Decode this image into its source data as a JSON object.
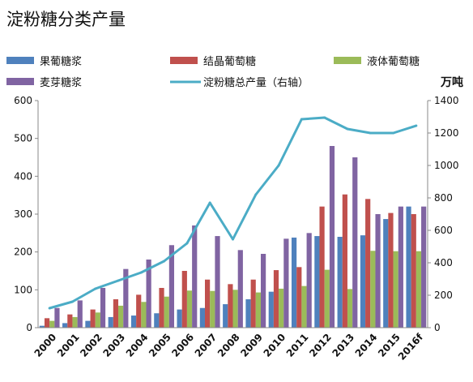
{
  "chart_data": {
    "type": "bar",
    "title": "淀粉糖分类产量",
    "y2_unit": "万吨",
    "categories": [
      "2000",
      "2001",
      "2002",
      "2003",
      "2004",
      "2005",
      "2006",
      "2007",
      "2008",
      "2009",
      "2010",
      "2011",
      "2012",
      "2013",
      "2014",
      "2015",
      "2016f"
    ],
    "series": [
      {
        "name": "果葡糖浆",
        "type": "bar",
        "axis": "left",
        "color": "#4f81bd",
        "values": [
          5,
          12,
          18,
          28,
          32,
          38,
          48,
          52,
          62,
          75,
          95,
          238,
          242,
          240,
          244,
          287,
          320
        ]
      },
      {
        "name": "结晶葡萄糖",
        "type": "bar",
        "axis": "left",
        "color": "#c0504d",
        "values": [
          25,
          35,
          48,
          75,
          87,
          105,
          150,
          127,
          115,
          127,
          152,
          160,
          320,
          352,
          340,
          303,
          300
        ]
      },
      {
        "name": "液体葡萄糖",
        "type": "bar",
        "axis": "left",
        "color": "#9bbb59",
        "values": [
          18,
          28,
          40,
          58,
          68,
          82,
          98,
          97,
          100,
          93,
          103,
          110,
          153,
          102,
          203,
          202,
          202
        ]
      },
      {
        "name": "麦芽糖浆",
        "type": "bar",
        "axis": "left",
        "color": "#8064a2",
        "values": [
          52,
          72,
          105,
          155,
          180,
          218,
          270,
          242,
          205,
          195,
          235,
          250,
          480,
          450,
          300,
          320,
          320
        ]
      },
      {
        "name": "淀粉糖总产量（右轴）",
        "type": "line",
        "axis": "right",
        "color": "#4bacc6",
        "values": [
          120,
          160,
          240,
          290,
          340,
          410,
          520,
          770,
          545,
          820,
          1000,
          1285,
          1295,
          1225,
          1200,
          1200,
          1245
        ]
      }
    ],
    "ylim": [
      0,
      600
    ],
    "yticks": [
      0,
      100,
      200,
      300,
      400,
      500,
      600
    ],
    "y2lim": [
      0,
      1400
    ],
    "y2ticks": [
      0,
      200,
      400,
      600,
      800,
      1000,
      1200,
      1400
    ],
    "legend": "top",
    "grid": false
  }
}
